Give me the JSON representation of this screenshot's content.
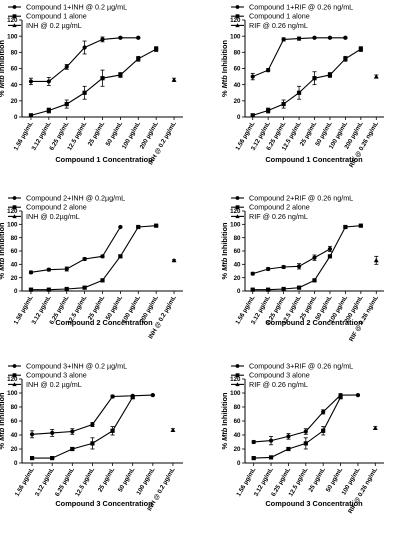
{
  "chart_data": [
    {
      "type": "line",
      "ylabel_prefix": "% ",
      "ylabel_italic": "Mtb",
      "ylabel_suffix": " Inhibition",
      "xlabel": "Compound 1 Concentration",
      "ylim": [
        0,
        120
      ],
      "yticks": [
        0,
        20,
        40,
        60,
        80,
        100,
        120
      ],
      "categories": [
        "1.56 µg/mL",
        "3.12 µg/mL",
        "6.25 µg/mL",
        "12.5 µg/mL",
        "25 µg/mL",
        "50 µg/mL",
        "100 µg/mL",
        "200 µg/mL",
        "INH @ 0.2 µg/mL"
      ],
      "series": [
        {
          "name": "Compound 1+INH @ 0.2 µg/mL",
          "marker": "circle",
          "values": [
            44,
            44,
            62,
            86,
            96,
            98,
            98,
            null,
            null
          ],
          "err": [
            4,
            5,
            3,
            8,
            3,
            1,
            1,
            null,
            null
          ]
        },
        {
          "name": "Compound 1 alone",
          "marker": "square",
          "values": [
            2,
            8,
            16,
            30,
            48,
            52,
            72,
            84,
            null
          ],
          "err": [
            2,
            3,
            5,
            8,
            10,
            3,
            3,
            3,
            null
          ]
        },
        {
          "name": "INH @ 0.2 µg/mL",
          "marker": "triangle",
          "values": [
            null,
            null,
            null,
            null,
            null,
            null,
            null,
            null,
            46
          ],
          "err": [
            null,
            null,
            null,
            null,
            null,
            null,
            null,
            null,
            2
          ]
        }
      ]
    },
    {
      "type": "line",
      "ylabel_prefix": "% ",
      "ylabel_italic": "Mtb",
      "ylabel_suffix": " Inhibition",
      "xlabel": "Compound 1 Concentration",
      "ylim": [
        0,
        120
      ],
      "yticks": [
        0,
        20,
        40,
        60,
        80,
        100,
        120
      ],
      "categories": [
        "1.56 µg/mL",
        "3.12 µg/mL",
        "6.25 µg/mL",
        "12.5 µg/mL",
        "25 µg/mL",
        "50 µg/mL",
        "100 µg/mL",
        "200 µg/mL",
        "RIF @ 0.26 ng/mL"
      ],
      "series": [
        {
          "name": "Compound 1+RIF @ 0.26 ng/mL",
          "marker": "circle",
          "values": [
            50,
            58,
            96,
            97,
            98,
            98,
            98,
            null,
            null
          ],
          "err": [
            4,
            2,
            2,
            2,
            1,
            1,
            1,
            null,
            null
          ]
        },
        {
          "name": "Compound 1 alone",
          "marker": "square",
          "values": [
            2,
            8,
            16,
            30,
            48,
            52,
            72,
            84,
            null
          ],
          "err": [
            2,
            3,
            5,
            8,
            8,
            3,
            3,
            3,
            null
          ]
        },
        {
          "name": "RIF @ 0.26 ng/mL",
          "marker": "triangle",
          "values": [
            null,
            null,
            null,
            null,
            null,
            null,
            null,
            null,
            50
          ],
          "err": [
            null,
            null,
            null,
            null,
            null,
            null,
            null,
            null,
            2
          ]
        }
      ]
    },
    {
      "type": "line",
      "ylabel_prefix": "% ",
      "ylabel_italic": "Mtb",
      "ylabel_suffix": " Inhibition",
      "xlabel": "Compound 2 Concentration",
      "ylim": [
        0,
        120
      ],
      "yticks": [
        0,
        20,
        40,
        60,
        80,
        100,
        120
      ],
      "categories": [
        "1.56 µg/mL",
        "3.12 µg/mL",
        "6.25 µg/mL",
        "12.5 µg/mL",
        "25 µg/mL",
        "50 µg/mL",
        "100 µg/mL",
        "200 µg/mL",
        "INH @ 0.2 µg/mL"
      ],
      "series": [
        {
          "name": "Compound 2+INH @ 0.2µg/mL",
          "marker": "circle",
          "values": [
            28,
            32,
            33,
            48,
            52,
            96,
            null,
            null,
            null
          ],
          "err": [
            2,
            2,
            3,
            2,
            2,
            1,
            null,
            null,
            null
          ]
        },
        {
          "name": "Compound 2 alone",
          "marker": "square",
          "values": [
            2,
            2,
            3,
            5,
            16,
            52,
            96,
            98,
            null
          ],
          "err": [
            1,
            1,
            1,
            2,
            2,
            2,
            1,
            1,
            null
          ]
        },
        {
          "name": "INH @ 0.2µg/mL",
          "marker": "triangle",
          "values": [
            null,
            null,
            null,
            null,
            null,
            null,
            null,
            null,
            46
          ],
          "err": [
            null,
            null,
            null,
            null,
            null,
            null,
            null,
            null,
            1
          ]
        }
      ]
    },
    {
      "type": "line",
      "ylabel_prefix": "% ",
      "ylabel_italic": "Mtb",
      "ylabel_suffix": " Inhibition",
      "xlabel": "Compound 2 Concentration",
      "ylim": [
        0,
        120
      ],
      "yticks": [
        0,
        20,
        40,
        60,
        80,
        100,
        120
      ],
      "categories": [
        "1.56 µg/mL",
        "3.12 µg/mL",
        "6.25 µg/mL",
        "12.5 µg/mL",
        "25 µg/mL",
        "50 µg/mL",
        "100 µg/mL",
        "200 µg/mL",
        "RIF @ 0.26 ng/mL"
      ],
      "series": [
        {
          "name": "Compound 2+RIF @ 0.26 ng/mL",
          "marker": "circle",
          "values": [
            26,
            33,
            36,
            37,
            50,
            63,
            null,
            null,
            null
          ],
          "err": [
            2,
            2,
            2,
            4,
            4,
            4,
            null,
            null,
            null
          ]
        },
        {
          "name": "Compound 2 alone",
          "marker": "square",
          "values": [
            2,
            2,
            3,
            5,
            16,
            52,
            96,
            98,
            null
          ],
          "err": [
            1,
            1,
            1,
            2,
            2,
            2,
            1,
            1,
            null
          ]
        },
        {
          "name": "RIF @ 0.26 ng/mL",
          "marker": "triangle",
          "values": [
            null,
            null,
            null,
            null,
            null,
            null,
            null,
            null,
            46
          ],
          "err": [
            null,
            null,
            null,
            null,
            null,
            null,
            null,
            null,
            6
          ]
        }
      ]
    },
    {
      "type": "line",
      "ylabel_prefix": "% ",
      "ylabel_italic": "Mtb",
      "ylabel_suffix": " Inhibition",
      "xlabel": "Compound 3 Concentration",
      "ylim": [
        0,
        120
      ],
      "yticks": [
        0,
        20,
        40,
        60,
        80,
        100,
        120
      ],
      "categories": [
        "1.56 µg/mL",
        "3.12 µg/mL",
        "6.25 µg/mL",
        "12.5 µg/mL",
        "25 µg/mL",
        "50 µg/mL",
        "100 µg/mL",
        "INH @ 0.2 µg/mL"
      ],
      "series": [
        {
          "name": "Compound 3+INH @ 0.2 µg/mL",
          "marker": "circle",
          "values": [
            41,
            43,
            45,
            55,
            95,
            96,
            97,
            null
          ],
          "err": [
            5,
            5,
            4,
            3,
            2,
            1,
            1,
            null
          ]
        },
        {
          "name": "Compound 3 alone",
          "marker": "square",
          "values": [
            7,
            7,
            20,
            28,
            46,
            94,
            null,
            null
          ],
          "err": [
            1,
            1,
            2,
            8,
            6,
            2,
            null,
            null
          ]
        },
        {
          "name": "INH @ 0.2 µg/mL",
          "marker": "triangle",
          "values": [
            null,
            null,
            null,
            null,
            null,
            null,
            null,
            47
          ],
          "err": [
            null,
            null,
            null,
            null,
            null,
            null,
            null,
            2
          ]
        }
      ]
    },
    {
      "type": "line",
      "ylabel_prefix": "% ",
      "ylabel_italic": "Mtb",
      "ylabel_suffix": " Inhibition",
      "xlabel": "Compound 3 Concentration",
      "ylim": [
        0,
        120
      ],
      "yticks": [
        0,
        20,
        40,
        60,
        80,
        100,
        120
      ],
      "categories": [
        "1.56 µg/mL",
        "3.12 µg/mL",
        "6.25 µg/mL",
        "12.5 µg/mL",
        "25 µg/mL",
        "50 µg/mL",
        "100 µg/mL",
        "RIF @ 0.26 ng/mL"
      ],
      "series": [
        {
          "name": "Compound 3+RIF @ 0.26 ng/mL",
          "marker": "circle",
          "values": [
            30,
            32,
            38,
            45,
            73,
            97,
            97,
            null
          ],
          "err": [
            2,
            6,
            4,
            4,
            3,
            2,
            1,
            null
          ]
        },
        {
          "name": "Compound 3 alone",
          "marker": "square",
          "values": [
            7,
            8,
            20,
            28,
            46,
            94,
            null,
            null
          ],
          "err": [
            1,
            1,
            2,
            8,
            6,
            2,
            null,
            null
          ]
        },
        {
          "name": "RIF @ 0.26 ng/mL",
          "marker": "triangle",
          "values": [
            null,
            null,
            null,
            null,
            null,
            null,
            null,
            50
          ],
          "err": [
            null,
            null,
            null,
            null,
            null,
            null,
            null,
            2
          ]
        }
      ]
    }
  ]
}
